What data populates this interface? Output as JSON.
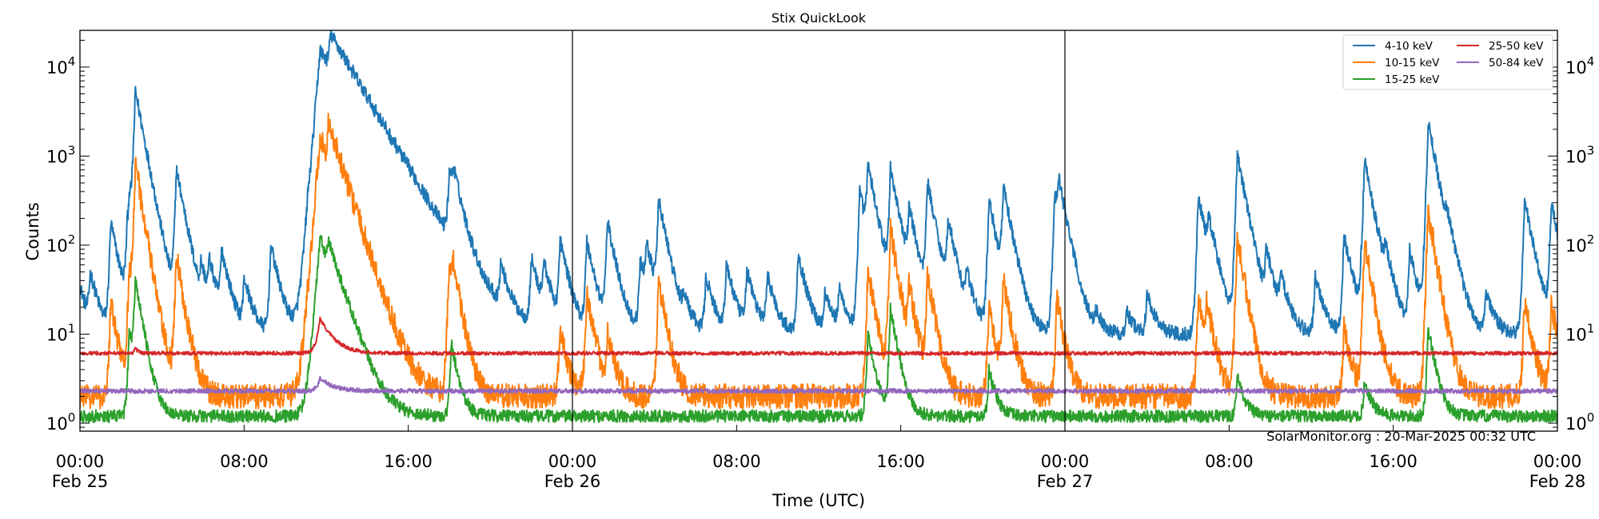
{
  "chart_data": {
    "type": "line",
    "title": "Stix QuickLook",
    "xlabel": "Time (UTC)",
    "ylabel": "Counts",
    "yscale": "log",
    "ylim": [
      0.8,
      25000
    ],
    "xlim_hours": [
      0,
      72
    ],
    "x_ticks": [
      {
        "hour": 0,
        "line1": "00:00",
        "line2": "Feb 25"
      },
      {
        "hour": 8,
        "line1": "08:00",
        "line2": ""
      },
      {
        "hour": 16,
        "line1": "16:00",
        "line2": ""
      },
      {
        "hour": 24,
        "line1": "00:00",
        "line2": "Feb 26"
      },
      {
        "hour": 32,
        "line1": "08:00",
        "line2": ""
      },
      {
        "hour": 40,
        "line1": "16:00",
        "line2": ""
      },
      {
        "hour": 48,
        "line1": "00:00",
        "line2": "Feb 27"
      },
      {
        "hour": 56,
        "line1": "08:00",
        "line2": ""
      },
      {
        "hour": 64,
        "line1": "16:00",
        "line2": ""
      },
      {
        "hour": 72,
        "line1": "00:00",
        "line2": "Feb 28"
      }
    ],
    "y_ticks": [
      {
        "exp": 0,
        "label": "10",
        "sup": "0"
      },
      {
        "exp": 1,
        "label": "10",
        "sup": "1"
      },
      {
        "exp": 2,
        "label": "10",
        "sup": "2"
      },
      {
        "exp": 3,
        "label": "10",
        "sup": "3"
      },
      {
        "exp": 4,
        "label": "10",
        "sup": "4"
      }
    ],
    "day_dividers_hours": [
      24,
      48
    ],
    "legend": {
      "position": "upper right",
      "ncol": 2,
      "entries": [
        {
          "label": "4-10 keV",
          "color": "#1f77b4"
        },
        {
          "label": "10-15 keV",
          "color": "#ff7f0e"
        },
        {
          "label": "15-25 keV",
          "color": "#2ca02c"
        },
        {
          "label": "25-50 keV",
          "color": "#d62728"
        },
        {
          "label": "50-84 keV",
          "color": "#9467bd"
        }
      ]
    },
    "series": [
      {
        "name": "4-10 keV",
        "color": "#1f77b4",
        "baseline": 10,
        "noise": 0.08,
        "peaks_hours_value": [
          [
            0.0,
            35
          ],
          [
            0.5,
            45
          ],
          [
            1.5,
            180
          ],
          [
            2.3,
            110
          ],
          [
            2.4,
            290
          ],
          [
            2.7,
            5300
          ],
          [
            4.7,
            700
          ],
          [
            5.9,
            45
          ],
          [
            6.3,
            55
          ],
          [
            6.9,
            80
          ],
          [
            8.0,
            40
          ],
          [
            9.3,
            100
          ],
          [
            11.1,
            95
          ],
          [
            11.7,
            15500
          ],
          [
            12.2,
            14000
          ],
          [
            15.5,
            30
          ],
          [
            18.0,
            600
          ],
          [
            18.2,
            350
          ],
          [
            20.5,
            50
          ],
          [
            22.0,
            70
          ],
          [
            22.6,
            55
          ],
          [
            23.4,
            110
          ],
          [
            24.7,
            110
          ],
          [
            25.7,
            180
          ],
          [
            27.3,
            65
          ],
          [
            27.6,
            90
          ],
          [
            28.2,
            310
          ],
          [
            29.4,
            22
          ],
          [
            30.5,
            45
          ],
          [
            31.5,
            60
          ],
          [
            32.5,
            50
          ],
          [
            33.5,
            45
          ],
          [
            35.0,
            80
          ],
          [
            36.3,
            30
          ],
          [
            37.0,
            30
          ],
          [
            38.0,
            400
          ],
          [
            38.4,
            700
          ],
          [
            39.5,
            700
          ],
          [
            40.4,
            230
          ],
          [
            41.3,
            500
          ],
          [
            42.3,
            180
          ],
          [
            43.2,
            40
          ],
          [
            44.3,
            320
          ],
          [
            45.0,
            410
          ],
          [
            47.5,
            360
          ],
          [
            47.7,
            370
          ],
          [
            49.5,
            16
          ],
          [
            51.0,
            18
          ],
          [
            52.0,
            28
          ],
          [
            54.5,
            350
          ],
          [
            55.0,
            150
          ],
          [
            56.4,
            1050
          ],
          [
            57.8,
            80
          ],
          [
            58.5,
            40
          ],
          [
            60.2,
            45
          ],
          [
            61.6,
            130
          ],
          [
            62.6,
            900
          ],
          [
            63.6,
            60
          ],
          [
            64.8,
            85
          ],
          [
            65.7,
            2400
          ],
          [
            66.6,
            100
          ],
          [
            68.5,
            30
          ],
          [
            70.4,
            320
          ],
          [
            71.7,
            290
          ]
        ],
        "decay_hours": 0.35
      },
      {
        "name": "10-15 keV",
        "color": "#ff7f0e",
        "baseline": 2.0,
        "noise": 0.14,
        "peaks_hours_value": [
          [
            1.5,
            22
          ],
          [
            2.4,
            50
          ],
          [
            2.7,
            800
          ],
          [
            4.7,
            75
          ],
          [
            11.7,
            1650
          ],
          [
            12.1,
            1500
          ],
          [
            18.0,
            65
          ],
          [
            18.2,
            35
          ],
          [
            23.4,
            12
          ],
          [
            24.7,
            30
          ],
          [
            25.7,
            10
          ],
          [
            28.2,
            40
          ],
          [
            38.4,
            55
          ],
          [
            39.5,
            150
          ],
          [
            40.4,
            30
          ],
          [
            41.3,
            45
          ],
          [
            44.3,
            20
          ],
          [
            45.0,
            40
          ],
          [
            47.6,
            25
          ],
          [
            54.5,
            25
          ],
          [
            54.9,
            20
          ],
          [
            56.4,
            120
          ],
          [
            61.6,
            12
          ],
          [
            62.6,
            110
          ],
          [
            65.7,
            250
          ],
          [
            70.4,
            25
          ],
          [
            71.7,
            22
          ]
        ],
        "decay_hours": 0.3
      },
      {
        "name": "15-25 keV",
        "color": "#2ca02c",
        "baseline": 1.2,
        "noise": 0.07,
        "peaks_hours_value": [
          [
            2.4,
            10
          ],
          [
            2.7,
            38
          ],
          [
            11.7,
            120
          ],
          [
            12.1,
            50
          ],
          [
            18.1,
            8
          ],
          [
            39.5,
            20
          ],
          [
            38.4,
            10
          ],
          [
            44.3,
            4
          ],
          [
            56.4,
            3.5
          ],
          [
            65.7,
            12
          ],
          [
            62.6,
            3
          ]
        ],
        "decay_hours": 0.3
      },
      {
        "name": "25-50 keV",
        "color": "#d62728",
        "baseline": 6.1,
        "noise": 0.02,
        "peaks_hours_value": [
          [
            11.7,
            15
          ],
          [
            2.7,
            7
          ]
        ],
        "decay_hours": 0.15
      },
      {
        "name": "50-84 keV",
        "color": "#9467bd",
        "baseline": 2.3,
        "noise": 0.025,
        "peaks_hours_value": [
          [
            11.7,
            3.2
          ]
        ],
        "decay_hours": 0.1
      }
    ],
    "annotation": "SolarMonitor.org : 20-Mar-2025 00:32 UTC",
    "grid": false
  }
}
